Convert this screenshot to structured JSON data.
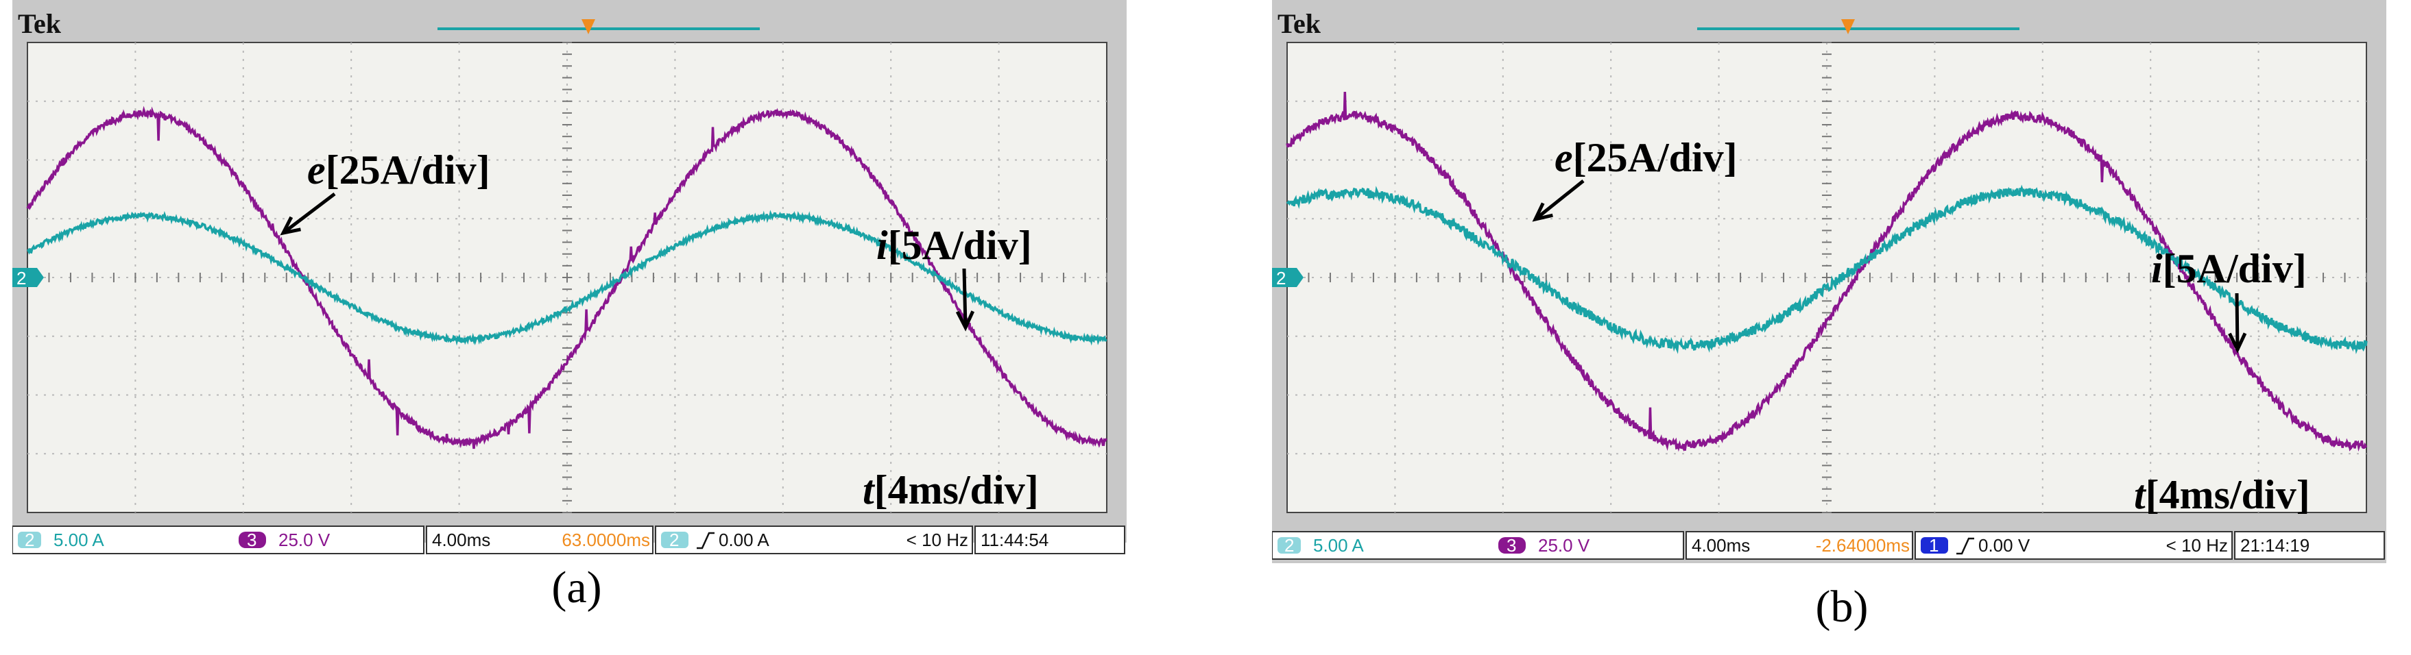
{
  "colors": {
    "ch2": "#1aa3a6",
    "ch3": "#8a168f",
    "ch1": "#1c2bd6",
    "trigger": "#f08c1e",
    "screen_bg": "#f2f2ee",
    "frame_bg": "#c8c8c8",
    "grid": "#b8b8b8"
  },
  "panels": [
    {
      "caption": "(a)",
      "brand": "Tek",
      "labels": {
        "e": "e",
        "e_scale": "[25A/div]",
        "i": "i",
        "i_scale": "[5A/div]",
        "t": "t",
        "t_scale": "[4ms/div]"
      },
      "channel_marker": "2",
      "status": {
        "ch_a_num": "2",
        "ch_a_value": "5.00 A",
        "ch_b_num": "3",
        "ch_b_value": "25.0 V",
        "timebase": "4.00ms",
        "position": "63.0000ms",
        "trig_num": "2",
        "trig_value": "0.00 A",
        "freq": "< 10 Hz",
        "clock": "11:44:54"
      },
      "chart_data": {
        "type": "line",
        "xlabel": "t[4ms/div]",
        "xlim": [
          0,
          40
        ],
        "ylim": [
          -4,
          4
        ],
        "grid": true,
        "divisions": {
          "x": 10,
          "y": 8
        },
        "series": [
          {
            "name": "e",
            "color": "#8a168f",
            "unit_per_div": "25A/div",
            "amplitude_div": 2.8,
            "offset_div": 0,
            "period_ms": 23.6,
            "zero_cross_ms": 22.0,
            "noise": 0.05
          },
          {
            "name": "i",
            "color": "#1aa3a6",
            "unit_per_div": "5A/div",
            "amplitude_div": 1.05,
            "offset_div": 0,
            "period_ms": 23.6,
            "zero_cross_ms": 22.0,
            "noise": 0.04
          }
        ]
      }
    },
    {
      "caption": "(b)",
      "brand": "Tek",
      "labels": {
        "e": "e",
        "e_scale": "[25A/div]",
        "i": "i",
        "i_scale": "[5A/div]",
        "t": "t",
        "t_scale": "[4ms/div]"
      },
      "channel_marker": "2",
      "status": {
        "ch_a_num": "2",
        "ch_a_value": "5.00 A",
        "ch_b_num": "3",
        "ch_b_value": "25.0 V",
        "timebase": "4.00ms",
        "position": "-2.64000ms",
        "trig_num": "1",
        "trig_value": "0.00 V",
        "freq": "< 10 Hz",
        "clock": "21:14:19"
      },
      "chart_data": {
        "type": "line",
        "xlabel": "t[4ms/div]",
        "xlim": [
          0,
          40
        ],
        "ylim": [
          -4,
          4
        ],
        "grid": true,
        "divisions": {
          "x": 10,
          "y": 8
        },
        "series": [
          {
            "name": "e",
            "color": "#8a168f",
            "unit_per_div": "25A/div",
            "amplitude_div": 2.8,
            "offset_div": -0.05,
            "period_ms": 24.8,
            "zero_cross_ms": 21.0,
            "noise": 0.07
          },
          {
            "name": "i",
            "color": "#1aa3a6",
            "unit_per_div": "5A/div",
            "amplitude_div": 1.3,
            "offset_div": 0.15,
            "period_ms": 24.8,
            "zero_cross_ms": 21.0,
            "noise": 0.08
          }
        ]
      }
    }
  ]
}
